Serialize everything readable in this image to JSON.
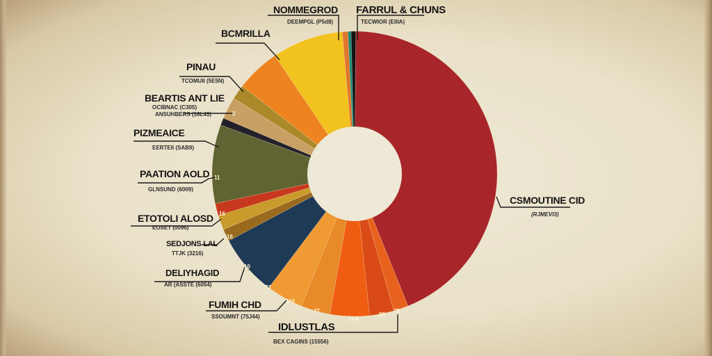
{
  "chart_data": {
    "type": "pie",
    "subtype": "donut",
    "title": "",
    "center": [
      510,
      250
    ],
    "outer_radius": 205,
    "inner_radius": 68,
    "slices": [
      {
        "label": "CSMOUTINE CID",
        "sublabel": "(RJMEVI3)",
        "start": 0.5,
        "end": 158,
        "color": "#a8262a"
      },
      {
        "label": "IDLUSTLAS",
        "sublabel": "BEX CAGINS (15556)",
        "start": 158,
        "end": 164,
        "color": "#e8621e",
        "value_label": "75"
      },
      {
        "label": "",
        "start": 164,
        "end": 174,
        "color": "#d94a16",
        "value_label": "98"
      },
      {
        "label": "",
        "start": 174,
        "end": 190,
        "color": "#ef5d12",
        "value_label": "71/4"
      },
      {
        "label": "",
        "start": 190,
        "end": 202,
        "color": "#e88a28",
        "value_label": "77"
      },
      {
        "label": "FUMIH CHD",
        "sublabel": "SSOUMNT (75J44)",
        "start": 202,
        "end": 217,
        "color": "#ef9a33",
        "value_label": "110"
      },
      {
        "label": "DELIYHAGID",
        "sublabel": "AR (ASSTE (6054)",
        "start": 217,
        "end": 242,
        "color": "#1f3a55",
        "value_label": "72"
      },
      {
        "label": "",
        "start": 242,
        "end": 247,
        "color": "#9a6a1e"
      },
      {
        "label": "SEDJONS LAL",
        "sublabel": "TTJK (3216)",
        "start": 247,
        "end": 253,
        "color": "#c99b2c",
        "value_label": "16"
      },
      {
        "label": "ETOTOLI ALOSD",
        "sublabel": "EOSET (0096)",
        "start": 253,
        "end": 258,
        "color": "#c8381e",
        "value_label": "16"
      },
      {
        "label": "PAATION AOLD",
        "sublabel": "GLNSUND (6009)",
        "start": 258,
        "end": 290,
        "color": "#5f6432",
        "value_label": "11"
      },
      {
        "label": "PIZMEAICE",
        "sublabel": "EERTEII (SAB9)",
        "start": 290,
        "end": 293,
        "color": "#22202a"
      },
      {
        "label": "",
        "start": 293,
        "end": 302,
        "color": "#c9a064"
      },
      {
        "label": "BEARTIS ANT LIE",
        "sublabel": "OCIBNAC (C305) / ANSUHBERS (16L43)",
        "start": 302,
        "end": 308,
        "color": "#a9892a",
        "value_label": "8"
      },
      {
        "label": "PINAU",
        "sublabel": "TCOMUII (5E5N)",
        "start": 308,
        "end": 326,
        "color": "#ee8420"
      },
      {
        "label": "BCMRILLA",
        "start": 326,
        "end": 355,
        "color": "#f2c21e"
      },
      {
        "label": "NOMMEGROD",
        "sublabel": "DEEMPGL (P5d8)",
        "start": 355,
        "end": 357.3,
        "color": "#e0762e"
      },
      {
        "label": "",
        "start": 357.3,
        "end": 358.6,
        "color": "#1f8a72"
      },
      {
        "label": "FARRUL & CHUNS",
        "sublabel": "TECWIOR (EIIIA)",
        "start": 358.6,
        "end": 360.5,
        "color": "#141414"
      }
    ]
  },
  "labels": {
    "nommegrod": {
      "title": "NOMMEGROD",
      "sub": "DEEMPGL (P5d8)"
    },
    "farrul": {
      "title": "FARRUL & CHUNS",
      "sub": "TECWIOR (EIIIA)"
    },
    "bcmrilla": {
      "title": "BCMRILLA"
    },
    "pinau": {
      "title": "PINAU",
      "sub": "TCOMUII (5E5N)"
    },
    "beartis": {
      "title": "BEARTIS ANT LIE",
      "sub1": "OCIBNAC (C305)",
      "sub2": "ANSUHBERS (16L43)"
    },
    "pizmeaice": {
      "title": "PIZMEAICE",
      "sub": "EERTEII (SAB9)"
    },
    "paation": {
      "title": "PAATION AOLD",
      "sub": "GLNSUND (6009)"
    },
    "etotoli": {
      "title": "ETOTOLI ALOSD",
      "sub": "EOSET (0096)"
    },
    "sedjons": {
      "title": "SEDJONS LAL",
      "sub": "TTJK (3216)"
    },
    "deliyhagid": {
      "title": "DELIYHAGID",
      "sub": "AR (ASSTE (6054)"
    },
    "fumih": {
      "title": "FUMIH CHD",
      "sub": "SSOUMNT (75J44)"
    },
    "idlustlas": {
      "title": "IDLUSTLAS",
      "sub": "BEX CAGINS (15556)"
    },
    "csmoutine": {
      "title": "CSMOUTINE CID",
      "sub": "(RJMEVI3)"
    }
  },
  "slice_values": {
    "v8": "8",
    "v11": "11",
    "v16a": "16",
    "v16b": "16",
    "v10": "10",
    "v72": "72",
    "v110": "110",
    "v77": "77",
    "v714": "71/4",
    "v98": "98",
    "v75": "75"
  }
}
